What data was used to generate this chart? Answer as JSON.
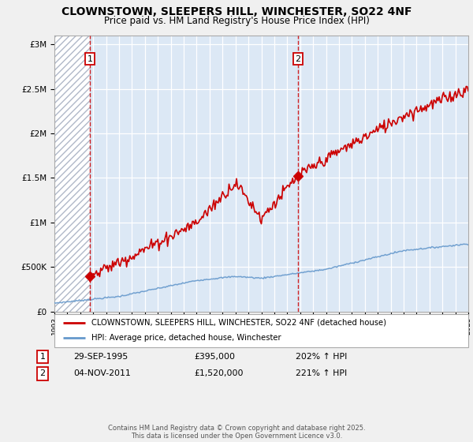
{
  "title_line1": "CLOWNSTOWN, SLEEPERS HILL, WINCHESTER, SO22 4NF",
  "title_line2": "Price paid vs. HM Land Registry's House Price Index (HPI)",
  "yticks": [
    0,
    500000,
    1000000,
    1500000,
    2000000,
    2500000,
    3000000
  ],
  "ytick_labels": [
    "£0",
    "£500K",
    "£1M",
    "£1.5M",
    "£2M",
    "£2.5M",
    "£3M"
  ],
  "ylim": [
    0,
    3100000
  ],
  "background_color": "#f0f0f0",
  "plot_bg_color": "#dce8f5",
  "hatch_color": "#cccccc",
  "grid_color": "#ffffff",
  "red_line_color": "#cc0000",
  "blue_line_color": "#6699cc",
  "marker1_price": 395000,
  "marker2_price": 1520000,
  "legend_line1": "CLOWNSTOWN, SLEEPERS HILL, WINCHESTER, SO22 4NF (detached house)",
  "legend_line2": "HPI: Average price, detached house, Winchester",
  "footer": "Contains HM Land Registry data © Crown copyright and database right 2025.\nThis data is licensed under the Open Government Licence v3.0.",
  "x_start_year": 1993,
  "x_end_year": 2025,
  "dashed_line1_year": 1995.75,
  "dashed_line2_year": 2011.83
}
